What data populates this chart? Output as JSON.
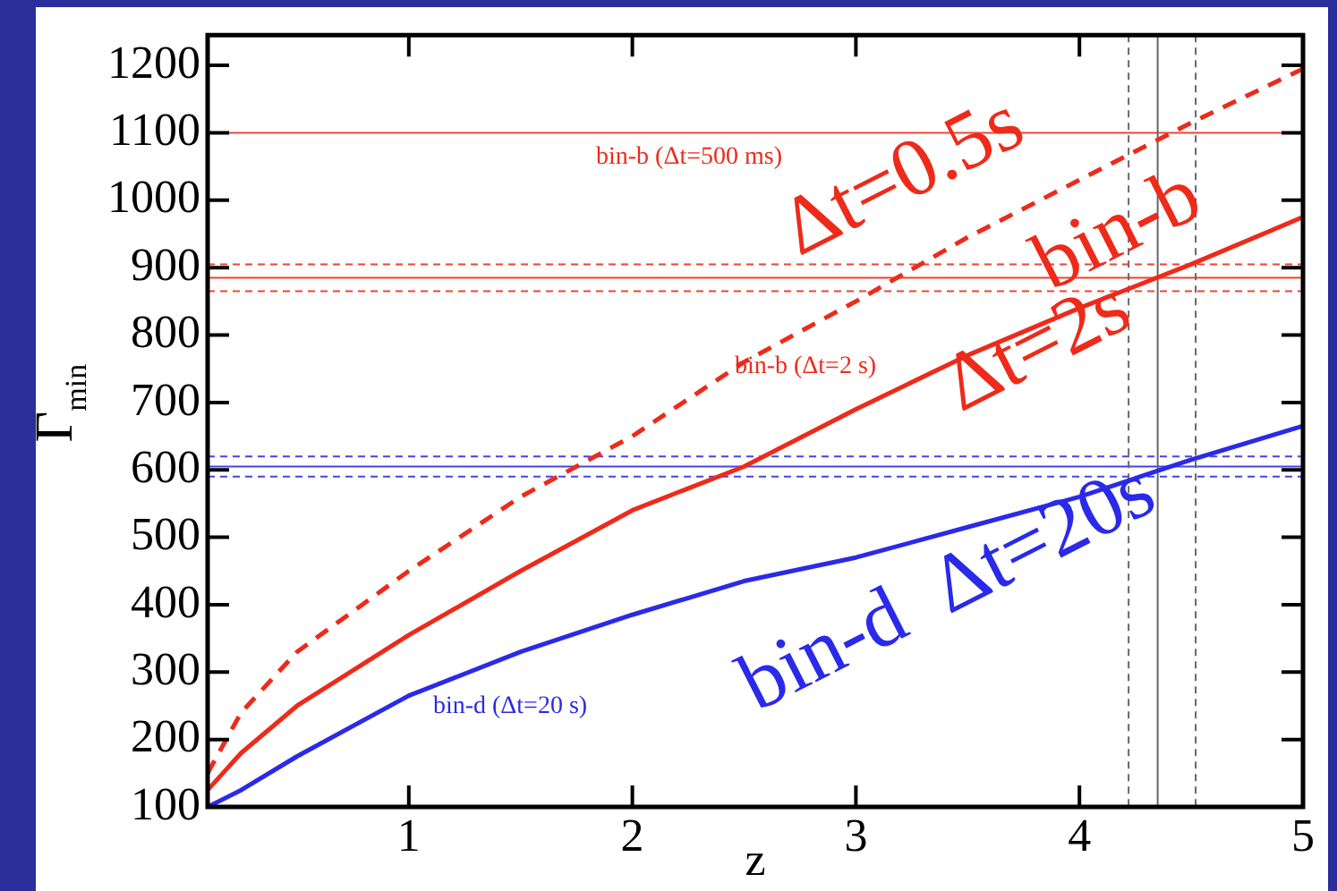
{
  "chart_data": {
    "type": "line",
    "xlabel": "z",
    "ylabel": "Γ$_{min}$",
    "x": [
      0.1,
      0.25,
      0.5,
      1,
      1.5,
      2,
      2.5,
      3,
      3.5,
      4,
      4.5,
      5
    ],
    "series": [
      {
        "color": "#ee2a1a",
        "line_style": "dashed",
        "values": [
          150,
          240,
          330,
          450,
          560,
          650,
          760,
          850,
          945,
          1030,
          1115,
          1195
        ]
      },
      {
        "color": "#ee2a1a",
        "line_style": "solid",
        "values": [
          125,
          180,
          250,
          355,
          450,
          540,
          605,
          690,
          770,
          840,
          905,
          975
        ]
      },
      {
        "color": "#2a2ae8",
        "line_style": "solid",
        "values": [
          100,
          125,
          175,
          265,
          330,
          385,
          435,
          470,
          515,
          560,
          615,
          665
        ]
      }
    ],
    "xlim": [
      0.1,
      5
    ],
    "xticks": [
      1,
      2,
      3,
      4,
      5
    ],
    "ylim": [
      100,
      1245
    ],
    "yticks": [
      100,
      200,
      300,
      400,
      500,
      600,
      700,
      800,
      900,
      1000,
      1100,
      1200
    ],
    "grid": false,
    "legend": false,
    "marker": "none",
    "ref_lines": [
      {
        "axis": "y",
        "value": 1100,
        "color": "#ee4433",
        "line_style": "solid"
      },
      {
        "axis": "y",
        "value": 905,
        "color": "#ee4433",
        "line_style": "dashed"
      },
      {
        "axis": "y",
        "value": 885,
        "color": "#ee4433",
        "line_style": "solid"
      },
      {
        "axis": "y",
        "value": 865,
        "color": "#ee4433",
        "line_style": "dashed"
      },
      {
        "axis": "y",
        "value": 620,
        "color": "#4444ee",
        "line_style": "dashed"
      },
      {
        "axis": "y",
        "value": 605,
        "color": "#4444ee",
        "line_style": "solid"
      },
      {
        "axis": "y",
        "value": 590,
        "color": "#4444ee",
        "line_style": "dashed"
      },
      {
        "axis": "x",
        "value": 4.22,
        "color": "#666666",
        "line_style": "dashed"
      },
      {
        "axis": "x",
        "value": 4.35,
        "color": "#666666",
        "line_style": "solid"
      },
      {
        "axis": "x",
        "value": 4.52,
        "color": "#666666",
        "line_style": "dashed"
      }
    ],
    "annotations": [
      "bin-b (Δt=500 ms)",
      "bin-b (Δt=2 s)",
      "bin-d (Δt=20 s)",
      "Δt=0.5s",
      "bin-b",
      "Δt=2s",
      "bin-d  Δt=20s"
    ]
  }
}
